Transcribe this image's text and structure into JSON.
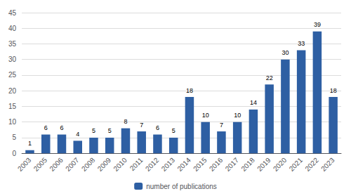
{
  "chart_data": {
    "type": "bar",
    "categories": [
      "2003",
      "2005",
      "2006",
      "2007",
      "2008",
      "2009",
      "2010",
      "2011",
      "2012",
      "2013",
      "2014",
      "2015",
      "2016",
      "2017",
      "2018",
      "2019",
      "2020",
      "2021",
      "2022",
      "2023"
    ],
    "series": [
      {
        "name": "number of publications",
        "color": "#2E5FA3",
        "values": [
          1,
          6,
          6,
          4,
          5,
          5,
          8,
          7,
          6,
          5,
          18,
          10,
          7,
          10,
          14,
          22,
          30,
          33,
          39,
          18
        ]
      }
    ],
    "ylim": [
      0,
      45
    ],
    "yticks": [
      0,
      5,
      10,
      15,
      20,
      25,
      30,
      35,
      40,
      45
    ],
    "grid": true,
    "legend": "bottom",
    "data_labels": true
  }
}
